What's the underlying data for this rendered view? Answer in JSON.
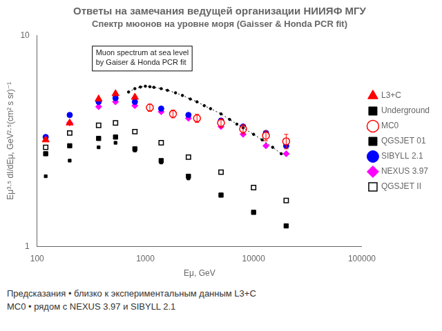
{
  "chart_data": {
    "type": "scatter",
    "title": "Ответы на замечания ведущей организации НИИЯФ МГУ",
    "subtitle": "Спектр мюонов на уровне моря (Gaisser & Honda PCR fit)",
    "xlabel": "Eμ, GeV",
    "ylabel": "Eμ³·⁵ dI/dEμ, GeV²·⁵(cm² s sr)⁻¹",
    "annotations": [
      "Muon spectrum at sea level\nby Gaiser & Honda PCR fit",
      "Предсказания  •  близко к экспериментальным данным  L3+C",
      "MC0   •  рядом с NEXUS 3.97 и SIBYLL 2.1"
    ],
    "log": true,
    "xlim": [
      100,
      100000
    ],
    "ylim": [
      1.0,
      10.0
    ],
    "xticks": [
      100,
      1000,
      10000,
      100000
    ],
    "yticks": [
      1,
      10
    ],
    "grid": false,
    "legend": "right",
    "series": [
      {
        "type": "line",
        "color": "#000000",
        "marker": "dot",
        "line_style": "dotted",
        "x": [
          700,
          800,
          900,
          1000,
          1100,
          1200,
          1400,
          1600,
          1900,
          2200,
          2600,
          3000,
          3500,
          4000,
          5000,
          6000,
          7000,
          8000,
          10000,
          12000,
          15000,
          18000
        ],
        "values": [
          5.4,
          5.6,
          5.7,
          5.75,
          5.72,
          5.68,
          5.6,
          5.5,
          5.35,
          5.2,
          5.0,
          4.85,
          4.65,
          4.5,
          4.25,
          4.0,
          3.8,
          3.65,
          3.4,
          3.2,
          2.95,
          2.75
        ]
      },
      {
        "name": "L3+C",
        "color": "#ff0000",
        "marker": "triangle",
        "x": [
          120,
          200,
          370,
          530,
          800
        ],
        "values": [
          3.2,
          3.85,
          5.0,
          5.3,
          5.1
        ]
      },
      {
        "name": "Underground",
        "color": "#000000",
        "marker": "small square",
        "x": [
          120,
          200,
          370,
          530,
          800,
          1400,
          2500,
          5000,
          10000
        ],
        "values": [
          2.15,
          2.55,
          2.95,
          3.1,
          2.85,
          2.5,
          2.1,
          1.75,
          1.45
        ]
      },
      {
        "name": "MC0",
        "color": "#ff0000",
        "marker": "open circle",
        "x": [
          1100,
          1800,
          3000,
          5000,
          8000,
          13000,
          20000
        ],
        "values": [
          4.55,
          4.25,
          4.05,
          3.85,
          3.6,
          3.35,
          3.15
        ],
        "yerr": [
          0.18,
          0.18,
          0.18,
          0.18,
          0.18,
          0.18,
          0.25
        ]
      },
      {
        "name": "QGSJET 01",
        "color": "#000000",
        "marker": "square",
        "x": [
          120,
          200,
          370,
          530,
          800,
          1400,
          2500,
          5000,
          10000,
          20000
        ],
        "values": [
          2.75,
          3.0,
          3.25,
          3.3,
          2.9,
          2.55,
          2.15,
          1.75,
          1.45,
          1.25
        ]
      },
      {
        "name": "SIBYLL 2.1",
        "color": "#0000ff",
        "marker": "circle",
        "x": [
          120,
          200,
          370,
          530,
          800,
          1400,
          2500,
          5000,
          8000,
          13000,
          20000
        ],
        "values": [
          3.3,
          4.2,
          4.85,
          5.05,
          4.85,
          4.5,
          4.2,
          3.95,
          3.7,
          3.45,
          3.0
        ]
      },
      {
        "name": "NEXUS 3.97",
        "color": "#ff00ff",
        "marker": "diamond",
        "x": [
          200,
          370,
          530,
          800,
          1400,
          2500,
          5000,
          8000,
          13000,
          20000
        ],
        "values": [
          3.85,
          4.6,
          4.85,
          4.65,
          4.35,
          4.05,
          3.7,
          3.4,
          3.0,
          2.75
        ]
      },
      {
        "name": "QGSJET II",
        "color": "#000000",
        "marker": "open square",
        "x": [
          120,
          200,
          370,
          530,
          800,
          1400,
          2500,
          5000,
          10000,
          20000
        ],
        "values": [
          2.95,
          3.45,
          3.75,
          3.85,
          3.5,
          3.1,
          2.65,
          2.25,
          1.9,
          1.65
        ]
      }
    ]
  }
}
